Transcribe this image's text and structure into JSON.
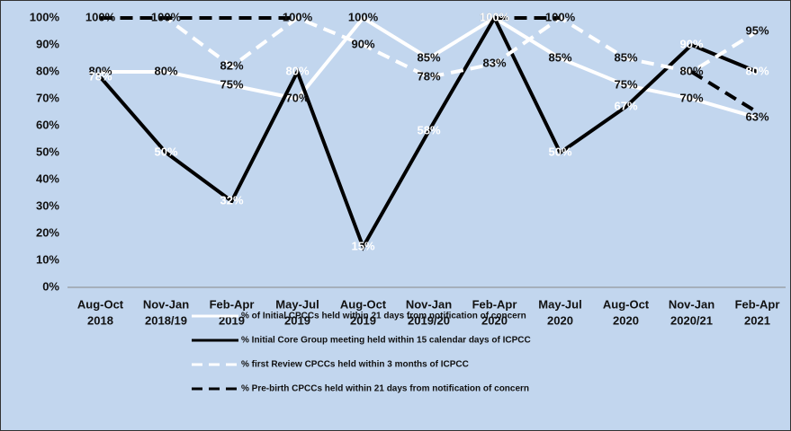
{
  "chart_data": {
    "type": "line",
    "categories": [
      [
        "Aug-Oct",
        "2018"
      ],
      [
        "Nov-Jan",
        "2018/19"
      ],
      [
        "Feb-Apr",
        "2019"
      ],
      [
        "May-Jul",
        "2019"
      ],
      [
        "Aug-Oct",
        "2019"
      ],
      [
        "Nov-Jan",
        "2019/20"
      ],
      [
        "Feb-Apr",
        "2020"
      ],
      [
        "May-Jul",
        "2020"
      ],
      [
        "Aug-Oct",
        "2020"
      ],
      [
        "Nov-Jan",
        "2020/21"
      ],
      [
        "Feb-Apr",
        "2021"
      ]
    ],
    "ylim": [
      0,
      100
    ],
    "yticks": [
      {
        "value": 0,
        "label": "0%"
      },
      {
        "value": 10,
        "label": "10%"
      },
      {
        "value": 20,
        "label": "20%"
      },
      {
        "value": 30,
        "label": "30%"
      },
      {
        "value": 40,
        "label": "40%"
      },
      {
        "value": 50,
        "label": "50%"
      },
      {
        "value": 60,
        "label": "60%"
      },
      {
        "value": 70,
        "label": "70%"
      },
      {
        "value": 80,
        "label": "80%"
      },
      {
        "value": 90,
        "label": "90%"
      },
      {
        "value": 100,
        "label": "100%"
      }
    ],
    "grid": false,
    "series": [
      {
        "name": "% of Initial CPCCs held within 21 days from notification of concern",
        "color": "#ffffff",
        "dash": false,
        "label_color": "#111111",
        "values": [
          80,
          80,
          75,
          70,
          100,
          85,
          100,
          85,
          75,
          70,
          63
        ],
        "value_labels": [
          "80%",
          "80%",
          "75%",
          "70%",
          "100%",
          "85%",
          "100%",
          "85%",
          "75%",
          "70%",
          "63%"
        ]
      },
      {
        "name": "% Initial Core Group meeting held within 15 calendar days of ICPCC",
        "color": "#000000",
        "dash": false,
        "label_color": "#ffffff",
        "values": [
          78,
          50,
          32,
          80,
          15,
          58,
          100,
          50,
          67,
          90,
          80
        ],
        "value_labels": [
          "78%",
          "50%",
          "32%",
          "80%",
          "15%",
          "58%",
          "100%",
          "50%",
          "67%",
          "90%",
          "80%"
        ]
      },
      {
        "name": "% first Review CPCCs held within 3 months of ICPCC",
        "color": "#ffffff",
        "dash": true,
        "label_color": "#111111",
        "values": [
          100,
          100,
          82,
          100,
          90,
          78,
          83,
          100,
          85,
          80,
          95
        ],
        "value_labels": [
          "100%",
          "100%",
          "82%",
          "100%",
          "90%",
          "78%",
          "83%",
          "100%",
          "85%",
          "80%",
          "95%"
        ]
      },
      {
        "name": "% Pre-birth CPCCs held within 21 days from notification of concern",
        "color": "#000000",
        "dash": true,
        "labels": false,
        "values": [
          100,
          100,
          100,
          100,
          null,
          null,
          100,
          100,
          null,
          80,
          65
        ]
      }
    ]
  }
}
